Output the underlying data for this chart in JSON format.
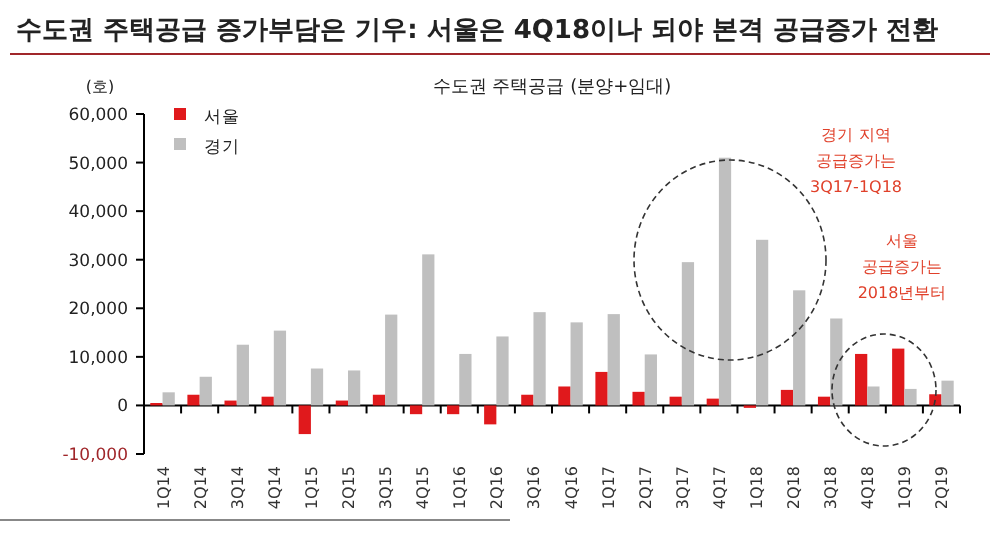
{
  "chart_data": {
    "type": "bar",
    "title": "수도권 주택공급 증가부담은 기우: 서울은 4Q18이나 되야 본격 공급증가 전환",
    "subtitle": "수도권 주택공급 (분양+임대)",
    "ylabel": "(호)",
    "categories": [
      "1Q14",
      "2Q14",
      "3Q14",
      "4Q14",
      "1Q15",
      "2Q15",
      "3Q15",
      "4Q15",
      "1Q16",
      "2Q16",
      "3Q16",
      "4Q16",
      "1Q17",
      "2Q17",
      "3Q17",
      "4Q17",
      "1Q18",
      "2Q18",
      "3Q18",
      "4Q18",
      "1Q19",
      "2Q19"
    ],
    "series": [
      {
        "name": "서울",
        "color": "#e0191c",
        "values": [
          500,
          2200,
          1000,
          1800,
          -5900,
          1000,
          2200,
          -1800,
          -1800,
          -3900,
          2200,
          3900,
          6900,
          2800,
          1800,
          1400,
          -500,
          3200,
          1800,
          10600,
          11700,
          2300
        ]
      },
      {
        "name": "경기",
        "color": "#bfbfbf",
        "values": [
          2700,
          5900,
          12500,
          15400,
          7600,
          7200,
          18700,
          31100,
          10600,
          14200,
          19200,
          17100,
          18800,
          10500,
          29500,
          51000,
          34100,
          23700,
          17900,
          3900,
          3400,
          5100
        ]
      }
    ],
    "ylim": [
      -10000,
      60000
    ],
    "yticks": [
      {
        "value": -10000,
        "label": "-10,000"
      },
      {
        "value": 0,
        "label": "0"
      },
      {
        "value": 10000,
        "label": "10,000"
      },
      {
        "value": 20000,
        "label": "20,000"
      },
      {
        "value": 30000,
        "label": "30,000"
      },
      {
        "value": 40000,
        "label": "40,000"
      },
      {
        "value": 50000,
        "label": "50,000"
      },
      {
        "value": 60000,
        "label": "60,000"
      }
    ],
    "legend": "top left",
    "annotations": [
      "경기 지역\n공급증가는\n3Q17-1Q18",
      "서울\n공급증가는\n2018년부터"
    ]
  }
}
